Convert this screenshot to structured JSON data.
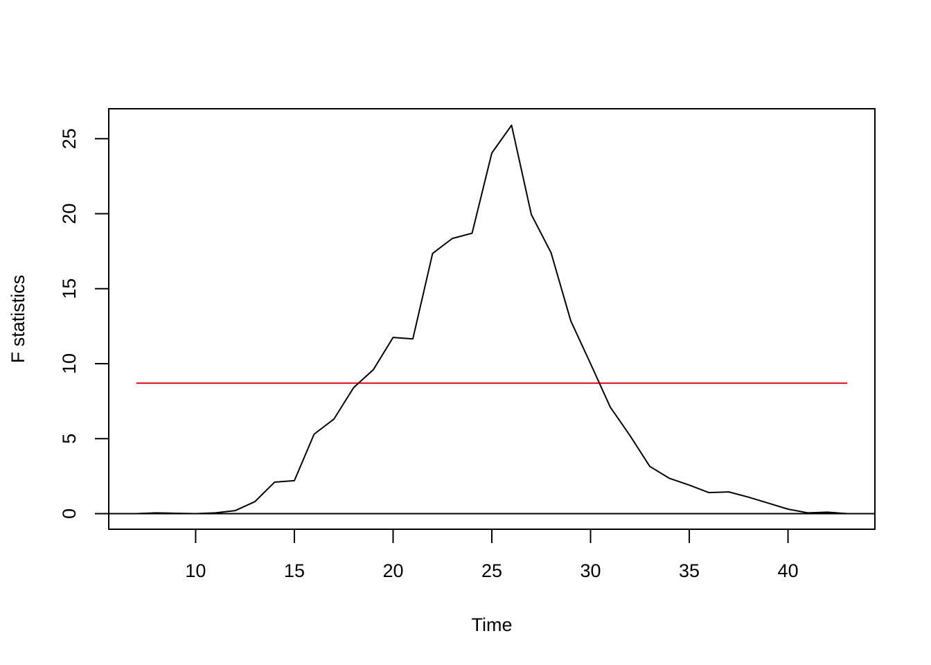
{
  "chart_data": {
    "type": "line",
    "xlabel": "Time",
    "ylabel": "F statistics",
    "xlim": [
      5.6,
      44.4
    ],
    "ylim": [
      -1.04,
      27.0
    ],
    "x_ticks": [
      "10",
      "15",
      "20",
      "25",
      "30",
      "35",
      "40"
    ],
    "y_ticks": [
      "0",
      "5",
      "10",
      "15",
      "20",
      "25"
    ],
    "x": [
      7,
      8,
      9,
      10,
      11,
      12,
      13,
      14,
      15,
      16,
      17,
      18,
      19,
      20,
      21,
      22,
      23,
      24,
      25,
      26,
      27,
      28,
      29,
      30,
      31,
      32,
      33,
      34,
      35,
      36,
      37,
      38,
      39,
      40,
      41,
      42,
      43
    ],
    "series": [
      {
        "values": [
          0.0,
          0.05,
          0.02,
          0.0,
          0.05,
          0.2,
          0.8,
          2.1,
          2.2,
          5.3,
          6.3,
          8.4,
          9.6,
          11.75,
          11.65,
          17.35,
          18.35,
          18.7,
          24.05,
          25.9,
          19.95,
          17.4,
          12.85,
          10.0,
          7.1,
          5.2,
          3.15,
          2.35,
          1.9,
          1.4,
          1.45,
          1.1,
          0.7,
          0.3,
          0.05,
          0.1,
          0.0
        ],
        "color": "#000000"
      }
    ],
    "reference_lines": {
      "horizontal_red": {
        "y": 8.7,
        "x_from": 7,
        "x_to": 43,
        "color": "#ff0000"
      },
      "zero_line": {
        "y": 0,
        "color": "#000000"
      }
    },
    "grid": false,
    "legend": "none"
  }
}
